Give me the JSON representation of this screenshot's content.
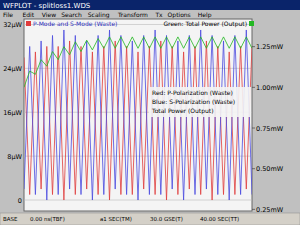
{
  "window": {
    "title": "WFPLOT - splitloss1.WDS",
    "menu": [
      "File",
      "Edit",
      "View",
      "Search",
      "Scaling",
      "Transform",
      "Tx",
      "Options",
      "Help"
    ],
    "status": [
      "BASE",
      "0.00 ns(TBF)",
      "a1 SEC(TM)",
      "30.0 GSE(T)",
      "40.00 SEC(TT)"
    ]
  },
  "chart_data": {
    "type": "line",
    "y_label": "P-Mode and S-Mode (Waste)",
    "y2_label": "Green: Total Power (Output)",
    "x": [
      0,
      1,
      2,
      3,
      4,
      5,
      6,
      7,
      8,
      9,
      10,
      11,
      12,
      13,
      14,
      15,
      16,
      17,
      18,
      19,
      20,
      21,
      22,
      23,
      24,
      25,
      26,
      27,
      28,
      29,
      30,
      31,
      32,
      33,
      34,
      35,
      36,
      37,
      38,
      39,
      40
    ],
    "xlim": [
      0,
      40
    ],
    "ylim": [
      -2,
      33
    ],
    "yticks": [
      0,
      {
        "value": 8,
        "label": "8µW"
      },
      {
        "value": 16,
        "label": "16µW"
      },
      {
        "value": 24,
        "label": "24µW"
      },
      {
        "value": 32,
        "label": "32µW"
      }
    ],
    "y2lim": [
      0.24,
      1.42
    ],
    "y2ticks": [
      {
        "value": 0.25,
        "label": "0.25mW"
      },
      {
        "value": 0.5,
        "label": "0.50mW"
      },
      {
        "value": 0.75,
        "label": "0.75mW"
      },
      {
        "value": 1.0,
        "label": "1.00mW"
      },
      {
        "value": 1.25,
        "label": "1.25mW"
      }
    ],
    "grid": true,
    "series": [
      {
        "name": "Red: P-Polarization (Waste)",
        "color": "#e03c3c",
        "values": [
          26,
          1,
          27,
          2,
          28,
          1,
          28,
          0,
          29,
          1,
          28,
          2,
          27,
          1,
          28,
          0,
          29,
          1,
          28,
          1,
          27,
          2,
          28,
          1,
          29,
          0,
          28,
          1,
          27,
          2,
          28,
          1,
          29,
          0,
          28,
          1,
          27,
          1,
          28,
          2,
          28
        ]
      },
      {
        "name": "Blue: S-Polarization (Waste)",
        "color": "#4a4ae0",
        "values": [
          2,
          28,
          1,
          29,
          0,
          30,
          1,
          31,
          2,
          30,
          1,
          29,
          0,
          30,
          1,
          31,
          2,
          30,
          1,
          29,
          0,
          30,
          1,
          31,
          1,
          30,
          2,
          29,
          0,
          30,
          1,
          31,
          2,
          30,
          1,
          29,
          0,
          30,
          1,
          31,
          1
        ]
      },
      {
        "name": "Total Power (Output)",
        "color": "#22b822",
        "axis": "y2",
        "values": [
          1.0,
          1.1,
          1.08,
          1.17,
          1.13,
          1.22,
          1.17,
          1.25,
          1.2,
          1.28,
          1.22,
          1.29,
          1.23,
          1.3,
          1.24,
          1.31,
          1.24,
          1.31,
          1.24,
          1.31,
          1.24,
          1.31,
          1.24,
          1.31,
          1.24,
          1.31,
          1.24,
          1.31,
          1.24,
          1.31,
          1.24,
          1.31,
          1.24,
          1.31,
          1.24,
          1.31,
          1.24,
          1.31,
          1.24,
          1.31,
          1.24
        ]
      }
    ]
  }
}
